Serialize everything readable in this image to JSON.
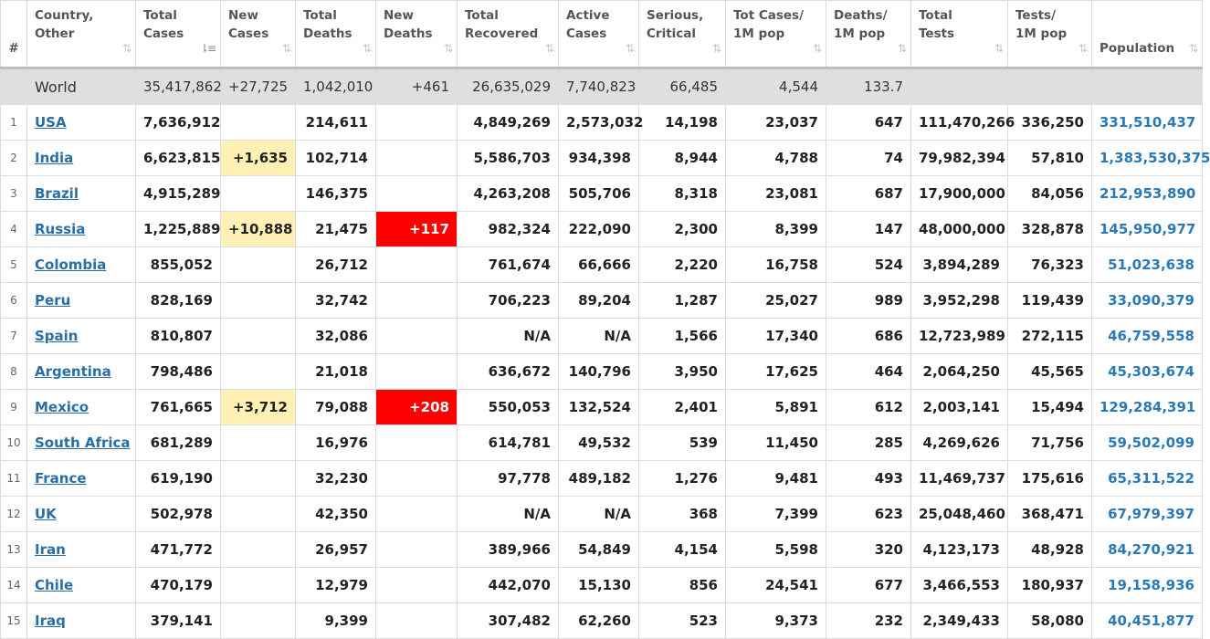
{
  "headers": {
    "rank": "#",
    "country": [
      "Country,",
      "Other"
    ],
    "total_cases": [
      "Total",
      "Cases"
    ],
    "new_cases": [
      "New",
      "Cases"
    ],
    "total_deaths": [
      "Total",
      "Deaths"
    ],
    "new_deaths": [
      "New",
      "Deaths"
    ],
    "total_recovered": [
      "Total",
      "Recovered"
    ],
    "active_cases": [
      "Active",
      "Cases"
    ],
    "serious_critical": [
      "Serious,",
      "Critical"
    ],
    "tot_cases_per_1m": [
      "Tot Cases/",
      "1M pop"
    ],
    "deaths_per_1m": [
      "Deaths/",
      "1M pop"
    ],
    "total_tests": [
      "Total",
      "Tests"
    ],
    "tests_per_1m": [
      "Tests/",
      "1M pop"
    ],
    "population": [
      "Population",
      ""
    ]
  },
  "sort_icons": {
    "default": "⇅",
    "active": "⇂≡"
  },
  "colors": {
    "new_cases_highlight": "#fff1b5",
    "new_deaths_highlight": "#ff0000",
    "world_row_bg": "#dfdfdf",
    "country_link": "#2a6ea6",
    "population_text": "#2a7ab8"
  },
  "world": {
    "country": "World",
    "total_cases": "35,417,862",
    "new_cases": "+27,725",
    "total_deaths": "1,042,010",
    "new_deaths": "+461",
    "total_recovered": "26,635,029",
    "active_cases": "7,740,823",
    "serious_critical": "66,485",
    "tot_cases_per_1m": "4,544",
    "deaths_per_1m": "133.7",
    "total_tests": "",
    "tests_per_1m": "",
    "population": ""
  },
  "rows": [
    {
      "rank": "1",
      "country": "USA",
      "total_cases": "7,636,912",
      "new_cases": "",
      "total_deaths": "214,611",
      "new_deaths": "",
      "total_recovered": "4,849,269",
      "active_cases": "2,573,032",
      "serious_critical": "14,198",
      "tot_cases_per_1m": "23,037",
      "deaths_per_1m": "647",
      "total_tests": "111,470,266",
      "tests_per_1m": "336,250",
      "population": "331,510,437"
    },
    {
      "rank": "2",
      "country": "India",
      "total_cases": "6,623,815",
      "new_cases": "+1,635",
      "total_deaths": "102,714",
      "new_deaths": "",
      "total_recovered": "5,586,703",
      "active_cases": "934,398",
      "serious_critical": "8,944",
      "tot_cases_per_1m": "4,788",
      "deaths_per_1m": "74",
      "total_tests": "79,982,394",
      "tests_per_1m": "57,810",
      "population": "1,383,530,375"
    },
    {
      "rank": "3",
      "country": "Brazil",
      "total_cases": "4,915,289",
      "new_cases": "",
      "total_deaths": "146,375",
      "new_deaths": "",
      "total_recovered": "4,263,208",
      "active_cases": "505,706",
      "serious_critical": "8,318",
      "tot_cases_per_1m": "23,081",
      "deaths_per_1m": "687",
      "total_tests": "17,900,000",
      "tests_per_1m": "84,056",
      "population": "212,953,890"
    },
    {
      "rank": "4",
      "country": "Russia",
      "total_cases": "1,225,889",
      "new_cases": "+10,888",
      "total_deaths": "21,475",
      "new_deaths": "+117",
      "total_recovered": "982,324",
      "active_cases": "222,090",
      "serious_critical": "2,300",
      "tot_cases_per_1m": "8,399",
      "deaths_per_1m": "147",
      "total_tests": "48,000,000",
      "tests_per_1m": "328,878",
      "population": "145,950,977"
    },
    {
      "rank": "5",
      "country": "Colombia",
      "total_cases": "855,052",
      "new_cases": "",
      "total_deaths": "26,712",
      "new_deaths": "",
      "total_recovered": "761,674",
      "active_cases": "66,666",
      "serious_critical": "2,220",
      "tot_cases_per_1m": "16,758",
      "deaths_per_1m": "524",
      "total_tests": "3,894,289",
      "tests_per_1m": "76,323",
      "population": "51,023,638"
    },
    {
      "rank": "6",
      "country": "Peru",
      "total_cases": "828,169",
      "new_cases": "",
      "total_deaths": "32,742",
      "new_deaths": "",
      "total_recovered": "706,223",
      "active_cases": "89,204",
      "serious_critical": "1,287",
      "tot_cases_per_1m": "25,027",
      "deaths_per_1m": "989",
      "total_tests": "3,952,298",
      "tests_per_1m": "119,439",
      "population": "33,090,379"
    },
    {
      "rank": "7",
      "country": "Spain",
      "total_cases": "810,807",
      "new_cases": "",
      "total_deaths": "32,086",
      "new_deaths": "",
      "total_recovered": "N/A",
      "active_cases": "N/A",
      "serious_critical": "1,566",
      "tot_cases_per_1m": "17,340",
      "deaths_per_1m": "686",
      "total_tests": "12,723,989",
      "tests_per_1m": "272,115",
      "population": "46,759,558"
    },
    {
      "rank": "8",
      "country": "Argentina",
      "total_cases": "798,486",
      "new_cases": "",
      "total_deaths": "21,018",
      "new_deaths": "",
      "total_recovered": "636,672",
      "active_cases": "140,796",
      "serious_critical": "3,950",
      "tot_cases_per_1m": "17,625",
      "deaths_per_1m": "464",
      "total_tests": "2,064,250",
      "tests_per_1m": "45,565",
      "population": "45,303,674"
    },
    {
      "rank": "9",
      "country": "Mexico",
      "total_cases": "761,665",
      "new_cases": "+3,712",
      "total_deaths": "79,088",
      "new_deaths": "+208",
      "total_recovered": "550,053",
      "active_cases": "132,524",
      "serious_critical": "2,401",
      "tot_cases_per_1m": "5,891",
      "deaths_per_1m": "612",
      "total_tests": "2,003,141",
      "tests_per_1m": "15,494",
      "population": "129,284,391"
    },
    {
      "rank": "10",
      "country": "South Africa",
      "total_cases": "681,289",
      "new_cases": "",
      "total_deaths": "16,976",
      "new_deaths": "",
      "total_recovered": "614,781",
      "active_cases": "49,532",
      "serious_critical": "539",
      "tot_cases_per_1m": "11,450",
      "deaths_per_1m": "285",
      "total_tests": "4,269,626",
      "tests_per_1m": "71,756",
      "population": "59,502,099"
    },
    {
      "rank": "11",
      "country": "France",
      "total_cases": "619,190",
      "new_cases": "",
      "total_deaths": "32,230",
      "new_deaths": "",
      "total_recovered": "97,778",
      "active_cases": "489,182",
      "serious_critical": "1,276",
      "tot_cases_per_1m": "9,481",
      "deaths_per_1m": "493",
      "total_tests": "11,469,737",
      "tests_per_1m": "175,616",
      "population": "65,311,522"
    },
    {
      "rank": "12",
      "country": "UK",
      "total_cases": "502,978",
      "new_cases": "",
      "total_deaths": "42,350",
      "new_deaths": "",
      "total_recovered": "N/A",
      "active_cases": "N/A",
      "serious_critical": "368",
      "tot_cases_per_1m": "7,399",
      "deaths_per_1m": "623",
      "total_tests": "25,048,460",
      "tests_per_1m": "368,471",
      "population": "67,979,397"
    },
    {
      "rank": "13",
      "country": "Iran",
      "total_cases": "471,772",
      "new_cases": "",
      "total_deaths": "26,957",
      "new_deaths": "",
      "total_recovered": "389,966",
      "active_cases": "54,849",
      "serious_critical": "4,154",
      "tot_cases_per_1m": "5,598",
      "deaths_per_1m": "320",
      "total_tests": "4,123,173",
      "tests_per_1m": "48,928",
      "population": "84,270,921"
    },
    {
      "rank": "14",
      "country": "Chile",
      "total_cases": "470,179",
      "new_cases": "",
      "total_deaths": "12,979",
      "new_deaths": "",
      "total_recovered": "442,070",
      "active_cases": "15,130",
      "serious_critical": "856",
      "tot_cases_per_1m": "24,541",
      "deaths_per_1m": "677",
      "total_tests": "3,466,553",
      "tests_per_1m": "180,937",
      "population": "19,158,936"
    },
    {
      "rank": "15",
      "country": "Iraq",
      "total_cases": "379,141",
      "new_cases": "",
      "total_deaths": "9,399",
      "new_deaths": "",
      "total_recovered": "307,482",
      "active_cases": "62,260",
      "serious_critical": "523",
      "tot_cases_per_1m": "9,373",
      "deaths_per_1m": "232",
      "total_tests": "2,349,433",
      "tests_per_1m": "58,080",
      "population": "40,451,877"
    }
  ]
}
